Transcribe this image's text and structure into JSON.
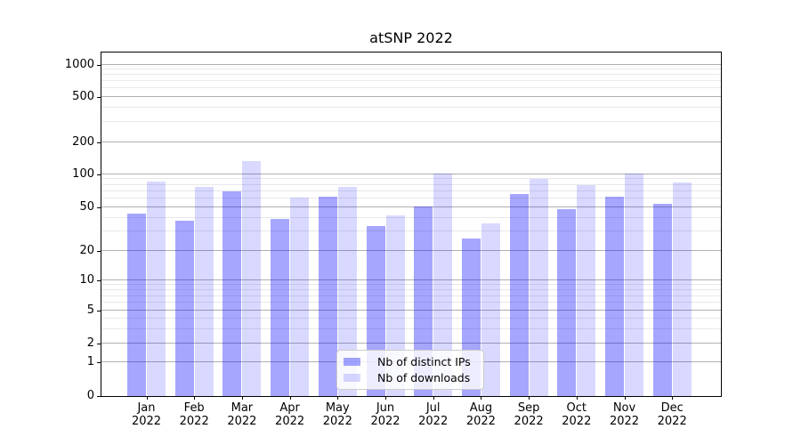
{
  "title": "atSNP 2022",
  "chart_data": {
    "type": "bar",
    "title": "atSNP 2022",
    "xlabel": "",
    "ylabel": "",
    "categories": [
      "Jan",
      "Feb",
      "Mar",
      "Apr",
      "May",
      "Jun",
      "Jul",
      "Aug",
      "Sep",
      "Oct",
      "Nov",
      "Dec"
    ],
    "year_label": "2022",
    "series": [
      {
        "name": "Nb of distinct IPs",
        "color": "#0000ff",
        "alpha": 0.35,
        "values": [
          44,
          38,
          70,
          39,
          63,
          34,
          51,
          26,
          66,
          48,
          62,
          54
        ]
      },
      {
        "name": "Nb of downloads",
        "color": "#0000ff",
        "alpha": 0.15,
        "values": [
          85,
          76,
          132,
          61,
          77,
          42,
          102,
          36,
          90,
          80,
          102,
          84
        ]
      }
    ],
    "yticks": [
      0,
      1,
      2,
      5,
      10,
      20,
      50,
      100,
      200,
      500,
      1000
    ],
    "yscale": "symlog",
    "ylim": [
      0,
      1200
    ],
    "grid": "both",
    "legend_position": "lower center",
    "grid_major_color": "#b0b0b0",
    "grid_minor_color": "#e8e8e8"
  }
}
